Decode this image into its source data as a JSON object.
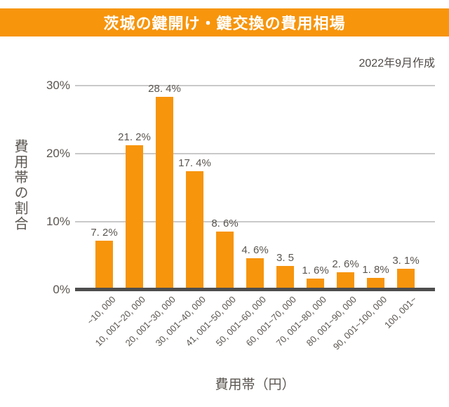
{
  "banner": {
    "title": "茨城の鍵開け・鍵交換の費用相場",
    "bg_color": "#F7950D",
    "text_color": "#FFFFFF"
  },
  "subtitle": "2022年9月作成",
  "chart_data": {
    "type": "bar",
    "title": "茨城の鍵開け・鍵交換の費用相場",
    "created_note": "2022年9月作成",
    "categories": [
      "~10, 000",
      "10, 001~20, 000",
      "20, 001~30, 000",
      "30, 001~40, 000",
      "41, 001~50, 000",
      "50, 001~60, 000",
      "60, 001~70, 000",
      "70, 001~80, 000",
      "80, 001~90, 000",
      "90, 001~100, 000",
      "100, 001~"
    ],
    "values": [
      7.2,
      21.2,
      28.4,
      17.4,
      8.6,
      4.6,
      3.5,
      1.6,
      2.6,
      1.8,
      3.1
    ],
    "value_labels": [
      "7. 2%",
      "21. 2%",
      "28. 4%",
      "17. 4%",
      "8. 6%",
      "4. 6%",
      "3. 5",
      "1. 6%",
      "2. 6%",
      "1. 8%",
      "3. 1%"
    ],
    "xlabel": "費用帯（円）",
    "ylabel": "費用帯の割合",
    "y_ticks": [
      "30%",
      "20%",
      "10%",
      "0%"
    ],
    "ylim": [
      0,
      30
    ],
    "grid": true,
    "legend": "none",
    "bar_color": "#F7950D",
    "gridline_color": "#C9C9C9",
    "axis_line_color": "#4D4D4D",
    "label_color": "#5A5550"
  }
}
